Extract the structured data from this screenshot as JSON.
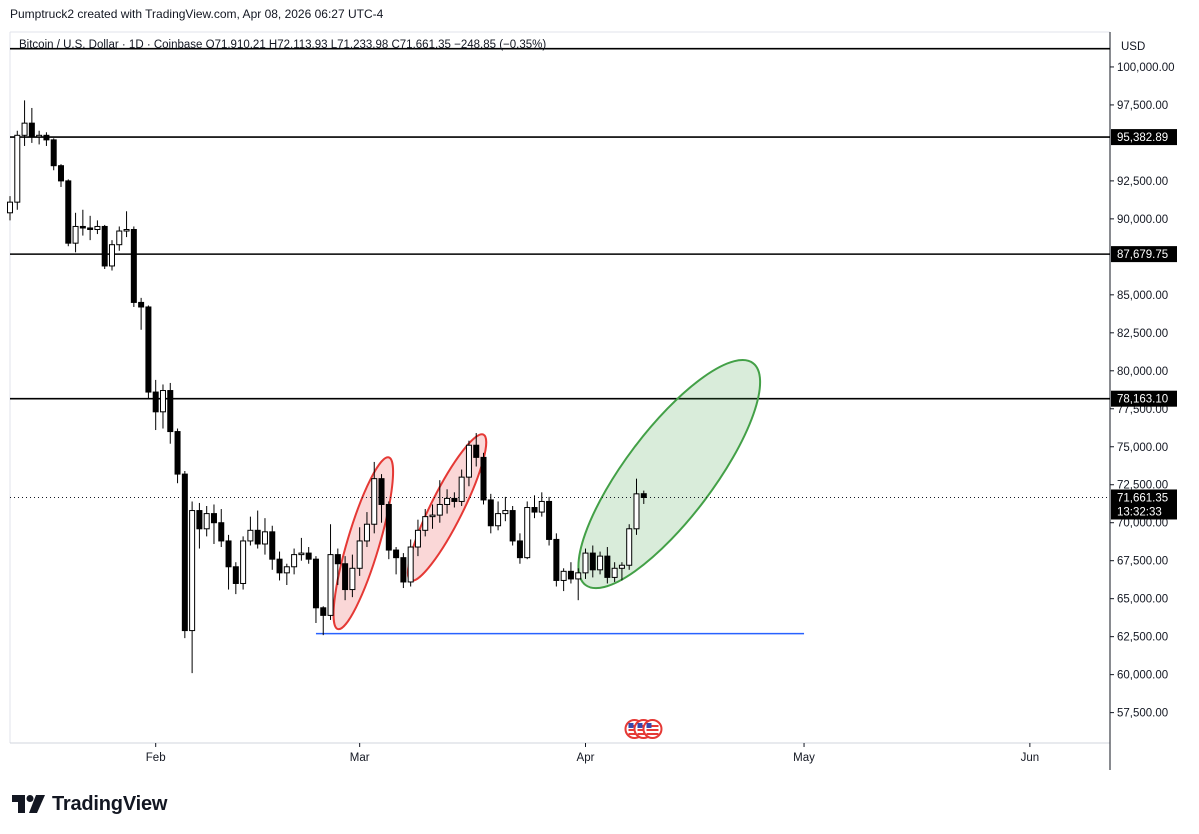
{
  "attribution": "Pumptruck2 created with TradingView.com, Apr 08, 2026 06:27 UTC-4",
  "brand": {
    "name": "TradingView",
    "logo_icon": "tradingview-logo-icon"
  },
  "chart_data": {
    "type": "candlestick",
    "symbol_line": "Bitcoin / U.S. Dollar · 1D · Coinbase  O71,910.21  H72,113.93  L71,233.98  C71,661.35  −248.85 (−0.35%)",
    "currency": "USD",
    "y_range": [
      55500,
      102300
    ],
    "y_ticks": [
      {
        "value": 100000,
        "label": "100,000.00"
      },
      {
        "value": 97500,
        "label": "97,500.00"
      },
      {
        "value": 92500,
        "label": "92,500.00"
      },
      {
        "value": 90000,
        "label": "90,000.00"
      },
      {
        "value": 85000,
        "label": "85,000.00"
      },
      {
        "value": 82500,
        "label": "82,500.00"
      },
      {
        "value": 80000,
        "label": "80,000.00"
      },
      {
        "value": 77500,
        "label": "77,500.00"
      },
      {
        "value": 75000,
        "label": "75,000.00"
      },
      {
        "value": 72500,
        "label": "72,500.00"
      },
      {
        "value": 70000,
        "label": "70,000.00"
      },
      {
        "value": 67500,
        "label": "67,500.00"
      },
      {
        "value": 65000,
        "label": "65,000.00"
      },
      {
        "value": 62500,
        "label": "62,500.00"
      },
      {
        "value": 60000,
        "label": "60,000.00"
      },
      {
        "value": 57500,
        "label": "57,500.00"
      }
    ],
    "x_range": [
      "2026-01-12",
      "2026-06-12"
    ],
    "x_ticks": [
      {
        "date": "2026-02-01",
        "label": "Feb"
      },
      {
        "date": "2026-03-01",
        "label": "Mar"
      },
      {
        "date": "2026-04-01",
        "label": "Apr"
      },
      {
        "date": "2026-05-01",
        "label": "May"
      },
      {
        "date": "2026-06-01",
        "label": "Jun"
      }
    ],
    "last_price": {
      "value": 71661.35,
      "label": "71,661.35",
      "countdown": "13:32:33"
    },
    "horizontal_levels": [
      {
        "value": 101200,
        "label": "",
        "color": "#000000"
      },
      {
        "value": 95382.89,
        "label": "95,382.89",
        "color": "#000000"
      },
      {
        "value": 87679.75,
        "label": "87,679.75",
        "color": "#000000"
      },
      {
        "value": 78163.1,
        "label": "78,163.10",
        "color": "#000000"
      }
    ],
    "trend_line": {
      "from": {
        "date": "2026-02-23",
        "value": 62700
      },
      "to": {
        "date": "2026-05-01",
        "value": 62700
      },
      "color": "#2962ff"
    },
    "highlight_ellipses": [
      {
        "from": {
          "date": "2026-02-26",
          "value": 63000
        },
        "to": {
          "date": "2026-03-05",
          "value": 74300
        },
        "color": "#e53935"
      },
      {
        "from": {
          "date": "2026-03-08",
          "value": 66200
        },
        "to": {
          "date": "2026-03-18",
          "value": 75800
        },
        "color": "#e53935"
      },
      {
        "from": {
          "date": "2026-04-01",
          "value": 65900
        },
        "to": {
          "date": "2026-04-24",
          "value": 80500
        },
        "color": "#43a047"
      }
    ],
    "event_markers": {
      "date": "2026-04-08",
      "count": 3,
      "icon": "us-flag-icon"
    },
    "up_color": "#ffffff",
    "down_color": "#000000",
    "candles": [
      {
        "d": "2026-01-12",
        "o": 90400,
        "h": 91500,
        "l": 89900,
        "c": 91100
      },
      {
        "d": "2026-01-13",
        "o": 91100,
        "h": 95800,
        "l": 90600,
        "c": 95500
      },
      {
        "d": "2026-01-14",
        "o": 95500,
        "h": 97800,
        "l": 94800,
        "c": 96300
      },
      {
        "d": "2026-01-15",
        "o": 96300,
        "h": 97300,
        "l": 95000,
        "c": 95400
      },
      {
        "d": "2026-01-16",
        "o": 95400,
        "h": 95800,
        "l": 94900,
        "c": 95500
      },
      {
        "d": "2026-01-17",
        "o": 95500,
        "h": 95700,
        "l": 94800,
        "c": 95200
      },
      {
        "d": "2026-01-18",
        "o": 95200,
        "h": 95300,
        "l": 93200,
        "c": 93500
      },
      {
        "d": "2026-01-19",
        "o": 93500,
        "h": 93600,
        "l": 92100,
        "c": 92500
      },
      {
        "d": "2026-01-20",
        "o": 92500,
        "h": 92600,
        "l": 88200,
        "c": 88400
      },
      {
        "d": "2026-01-21",
        "o": 88400,
        "h": 90400,
        "l": 87800,
        "c": 89500
      },
      {
        "d": "2026-01-22",
        "o": 89500,
        "h": 90600,
        "l": 88900,
        "c": 89400
      },
      {
        "d": "2026-01-23",
        "o": 89400,
        "h": 90200,
        "l": 88600,
        "c": 89300
      },
      {
        "d": "2026-01-24",
        "o": 89300,
        "h": 89900,
        "l": 89000,
        "c": 89500
      },
      {
        "d": "2026-01-25",
        "o": 89500,
        "h": 89600,
        "l": 86700,
        "c": 86900
      },
      {
        "d": "2026-01-26",
        "o": 86900,
        "h": 88600,
        "l": 86600,
        "c": 88300
      },
      {
        "d": "2026-01-27",
        "o": 88300,
        "h": 89500,
        "l": 87900,
        "c": 89200
      },
      {
        "d": "2026-01-28",
        "o": 89200,
        "h": 90500,
        "l": 88800,
        "c": 89300
      },
      {
        "d": "2026-01-29",
        "o": 89300,
        "h": 89500,
        "l": 84200,
        "c": 84500
      },
      {
        "d": "2026-01-30",
        "o": 84500,
        "h": 84800,
        "l": 82700,
        "c": 84200
      },
      {
        "d": "2026-01-31",
        "o": 84200,
        "h": 84300,
        "l": 78200,
        "c": 78600
      },
      {
        "d": "2026-02-01",
        "o": 78600,
        "h": 79400,
        "l": 76100,
        "c": 77300
      },
      {
        "d": "2026-02-02",
        "o": 77300,
        "h": 79100,
        "l": 76200,
        "c": 78700
      },
      {
        "d": "2026-02-03",
        "o": 78700,
        "h": 79200,
        "l": 75200,
        "c": 76000
      },
      {
        "d": "2026-02-04",
        "o": 76000,
        "h": 76200,
        "l": 72600,
        "c": 73200
      },
      {
        "d": "2026-02-05",
        "o": 73200,
        "h": 73400,
        "l": 62400,
        "c": 62900
      },
      {
        "d": "2026-02-06",
        "o": 62900,
        "h": 71400,
        "l": 60100,
        "c": 70800
      },
      {
        "d": "2026-02-07",
        "o": 70800,
        "h": 71300,
        "l": 68300,
        "c": 69600
      },
      {
        "d": "2026-02-08",
        "o": 69600,
        "h": 71100,
        "l": 69100,
        "c": 70600
      },
      {
        "d": "2026-02-09",
        "o": 70600,
        "h": 71200,
        "l": 68600,
        "c": 70000
      },
      {
        "d": "2026-02-10",
        "o": 70000,
        "h": 70900,
        "l": 68400,
        "c": 68800
      },
      {
        "d": "2026-02-11",
        "o": 68800,
        "h": 69200,
        "l": 65600,
        "c": 67100
      },
      {
        "d": "2026-02-12",
        "o": 67100,
        "h": 67400,
        "l": 65300,
        "c": 66000
      },
      {
        "d": "2026-02-13",
        "o": 66000,
        "h": 69100,
        "l": 65600,
        "c": 68800
      },
      {
        "d": "2026-02-14",
        "o": 68800,
        "h": 70400,
        "l": 68500,
        "c": 69500
      },
      {
        "d": "2026-02-15",
        "o": 69500,
        "h": 70800,
        "l": 68300,
        "c": 68600
      },
      {
        "d": "2026-02-16",
        "o": 68600,
        "h": 70300,
        "l": 67900,
        "c": 69400
      },
      {
        "d": "2026-02-17",
        "o": 69400,
        "h": 69800,
        "l": 66900,
        "c": 67600
      },
      {
        "d": "2026-02-18",
        "o": 67600,
        "h": 68100,
        "l": 66200,
        "c": 66700
      },
      {
        "d": "2026-02-19",
        "o": 66700,
        "h": 67300,
        "l": 65900,
        "c": 67100
      },
      {
        "d": "2026-02-20",
        "o": 67100,
        "h": 68300,
        "l": 66600,
        "c": 67900
      },
      {
        "d": "2026-02-21",
        "o": 67900,
        "h": 69000,
        "l": 67500,
        "c": 68000
      },
      {
        "d": "2026-02-22",
        "o": 68000,
        "h": 68400,
        "l": 67300,
        "c": 67600
      },
      {
        "d": "2026-02-23",
        "o": 67600,
        "h": 67800,
        "l": 63400,
        "c": 64400
      },
      {
        "d": "2026-02-24",
        "o": 64400,
        "h": 64500,
        "l": 62600,
        "c": 63900
      },
      {
        "d": "2026-02-25",
        "o": 63900,
        "h": 69900,
        "l": 63600,
        "c": 67900
      },
      {
        "d": "2026-02-26",
        "o": 67900,
        "h": 68300,
        "l": 65900,
        "c": 67300
      },
      {
        "d": "2026-02-27",
        "o": 67300,
        "h": 67800,
        "l": 64900,
        "c": 65600
      },
      {
        "d": "2026-02-28",
        "o": 65600,
        "h": 67900,
        "l": 65100,
        "c": 67000
      },
      {
        "d": "2026-03-01",
        "o": 67000,
        "h": 69700,
        "l": 66500,
        "c": 68800
      },
      {
        "d": "2026-03-02",
        "o": 68800,
        "h": 70700,
        "l": 68400,
        "c": 69900
      },
      {
        "d": "2026-03-03",
        "o": 69900,
        "h": 74000,
        "l": 69300,
        "c": 72900
      },
      {
        "d": "2026-03-04",
        "o": 72900,
        "h": 73200,
        "l": 70000,
        "c": 71200
      },
      {
        "d": "2026-03-05",
        "o": 71200,
        "h": 71400,
        "l": 67600,
        "c": 68200
      },
      {
        "d": "2026-03-06",
        "o": 68200,
        "h": 68400,
        "l": 66600,
        "c": 67700
      },
      {
        "d": "2026-03-07",
        "o": 67700,
        "h": 68000,
        "l": 65700,
        "c": 66100
      },
      {
        "d": "2026-03-08",
        "o": 66100,
        "h": 68900,
        "l": 65800,
        "c": 68400
      },
      {
        "d": "2026-03-09",
        "o": 68400,
        "h": 70200,
        "l": 67800,
        "c": 69500
      },
      {
        "d": "2026-03-10",
        "o": 69500,
        "h": 70900,
        "l": 69100,
        "c": 70400
      },
      {
        "d": "2026-03-11",
        "o": 70400,
        "h": 71200,
        "l": 69600,
        "c": 70500
      },
      {
        "d": "2026-03-12",
        "o": 70500,
        "h": 72800,
        "l": 70000,
        "c": 71200
      },
      {
        "d": "2026-03-13",
        "o": 71200,
        "h": 72200,
        "l": 70600,
        "c": 71600
      },
      {
        "d": "2026-03-14",
        "o": 71600,
        "h": 72000,
        "l": 71000,
        "c": 71400
      },
      {
        "d": "2026-03-15",
        "o": 71400,
        "h": 73500,
        "l": 71100,
        "c": 73000
      },
      {
        "d": "2026-03-16",
        "o": 73000,
        "h": 75400,
        "l": 72400,
        "c": 75100
      },
      {
        "d": "2026-03-17",
        "o": 75100,
        "h": 75900,
        "l": 73700,
        "c": 74300
      },
      {
        "d": "2026-03-18",
        "o": 74300,
        "h": 74600,
        "l": 71200,
        "c": 71500
      },
      {
        "d": "2026-03-19",
        "o": 71500,
        "h": 71900,
        "l": 69300,
        "c": 69800
      },
      {
        "d": "2026-03-20",
        "o": 69800,
        "h": 71400,
        "l": 69500,
        "c": 70600
      },
      {
        "d": "2026-03-21",
        "o": 70600,
        "h": 71700,
        "l": 70100,
        "c": 70800
      },
      {
        "d": "2026-03-22",
        "o": 70800,
        "h": 71100,
        "l": 68500,
        "c": 68800
      },
      {
        "d": "2026-03-23",
        "o": 68800,
        "h": 69300,
        "l": 67300,
        "c": 67700
      },
      {
        "d": "2026-03-24",
        "o": 67700,
        "h": 71400,
        "l": 67600,
        "c": 71000
      },
      {
        "d": "2026-03-25",
        "o": 71000,
        "h": 71800,
        "l": 70300,
        "c": 70700
      },
      {
        "d": "2026-03-26",
        "o": 70700,
        "h": 72000,
        "l": 70400,
        "c": 71400
      },
      {
        "d": "2026-03-27",
        "o": 71400,
        "h": 71700,
        "l": 68500,
        "c": 68900
      },
      {
        "d": "2026-03-28",
        "o": 68900,
        "h": 69300,
        "l": 65800,
        "c": 66200
      },
      {
        "d": "2026-03-29",
        "o": 66200,
        "h": 67000,
        "l": 65500,
        "c": 66800
      },
      {
        "d": "2026-03-30",
        "o": 66800,
        "h": 67400,
        "l": 66000,
        "c": 66300
      },
      {
        "d": "2026-03-31",
        "o": 66300,
        "h": 67000,
        "l": 64900,
        "c": 66700
      },
      {
        "d": "2026-04-01",
        "o": 66700,
        "h": 68300,
        "l": 66300,
        "c": 68000
      },
      {
        "d": "2026-04-02",
        "o": 68000,
        "h": 68500,
        "l": 66400,
        "c": 66900
      },
      {
        "d": "2026-04-03",
        "o": 66900,
        "h": 68100,
        "l": 66600,
        "c": 67800
      },
      {
        "d": "2026-04-04",
        "o": 67800,
        "h": 68400,
        "l": 66000,
        "c": 66400
      },
      {
        "d": "2026-04-05",
        "o": 66400,
        "h": 67400,
        "l": 66100,
        "c": 67000
      },
      {
        "d": "2026-04-06",
        "o": 67000,
        "h": 67400,
        "l": 66200,
        "c": 67200
      },
      {
        "d": "2026-04-07",
        "o": 67200,
        "h": 69900,
        "l": 66900,
        "c": 69600
      },
      {
        "d": "2026-04-08",
        "o": 69600,
        "h": 72900,
        "l": 69200,
        "c": 71900
      },
      {
        "d": "2026-04-09",
        "o": 71910,
        "h": 72114,
        "l": 71234,
        "c": 71661
      }
    ]
  }
}
